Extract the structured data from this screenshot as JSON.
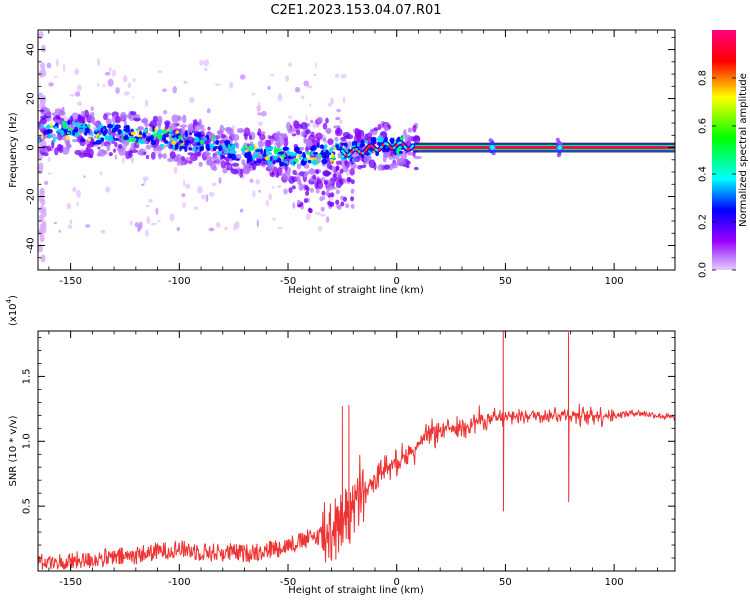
{
  "figure": {
    "title": "C2E1.2023.153.04.07.R01"
  },
  "chart_data": [
    {
      "type": "heatmap",
      "xlabel": "Height of straight line (km)",
      "ylabel": "Frequency (Hz)",
      "xlim": [
        -165,
        128
      ],
      "ylim": [
        -50,
        48
      ],
      "xticks": [
        -150,
        -100,
        -50,
        0,
        50,
        100
      ],
      "yticks": [
        -40,
        -20,
        0,
        20,
        40
      ],
      "colorbar": {
        "label": "Normalized spectral amplitude",
        "range": [
          0,
          1
        ],
        "ticks": [
          "0.0",
          "0.2",
          "0.4",
          "0.6",
          "0.8"
        ],
        "colors": [
          "#e9c8ff",
          "#9a00ff",
          "#0000ff",
          "#00ffff",
          "#00ff00",
          "#ffff00",
          "#ff0000",
          "#ff0080"
        ]
      },
      "ridge": {
        "x": [
          -165,
          -150,
          -140,
          -130,
          -120,
          -110,
          -100,
          -90,
          -80,
          -70,
          -60,
          -50,
          -40,
          -30,
          -20,
          -10,
          0,
          10,
          30,
          60,
          100,
          128
        ],
        "y": [
          6,
          7,
          5,
          6,
          5,
          4,
          3,
          2,
          -1,
          -2,
          -3,
          -4,
          -3,
          -2,
          -2,
          0,
          1,
          0,
          0,
          0,
          0,
          0
        ]
      },
      "stable_line": {
        "x_start": 8,
        "x_end": 128,
        "frequency": 0
      },
      "burst_heights": [
        44,
        75
      ]
    },
    {
      "type": "line",
      "xlabel": "Height of straight line (km)",
      "ylabel": "SNR (10 * v/v)",
      "y_multiplier": "(x10",
      "y_multiplier_exp": "4",
      "y_multiplier_close": ")",
      "xlim": [
        -165,
        128
      ],
      "ylim": [
        0,
        1.85
      ],
      "xticks": [
        -150,
        -100,
        -50,
        0,
        50,
        100
      ],
      "yticks": [
        "0.5",
        "1.0",
        "1.5"
      ],
      "ytick_values": [
        0.5,
        1.0,
        1.5
      ],
      "color": "#ee3333",
      "x": [
        -165,
        -150,
        -140,
        -130,
        -120,
        -110,
        -100,
        -90,
        -80,
        -70,
        -60,
        -50,
        -40,
        -32,
        -25,
        -20,
        -15,
        -10,
        -5,
        0,
        5,
        10,
        15,
        20,
        25,
        30,
        35,
        40,
        45,
        50,
        55,
        60,
        70,
        80,
        90,
        100,
        110,
        120,
        128
      ],
      "y": [
        0.05,
        0.07,
        0.09,
        0.1,
        0.12,
        0.15,
        0.17,
        0.15,
        0.14,
        0.14,
        0.16,
        0.2,
        0.25,
        0.3,
        0.4,
        0.5,
        0.6,
        0.7,
        0.8,
        0.85,
        0.9,
        0.97,
        1.05,
        1.08,
        1.1,
        1.12,
        1.15,
        1.17,
        1.17,
        1.18,
        1.19,
        1.2,
        1.2,
        1.2,
        1.2,
        1.2,
        1.22,
        1.2,
        1.18
      ],
      "spikes": [
        {
          "x": 49,
          "top": 1.85,
          "bottom": 0.46
        },
        {
          "x": 79,
          "top": 1.84,
          "bottom": 0.53
        },
        {
          "x": -22,
          "top": 1.28,
          "bottom": 0.25
        },
        {
          "x": -25,
          "top": 1.27,
          "bottom": 0.28
        }
      ]
    }
  ]
}
